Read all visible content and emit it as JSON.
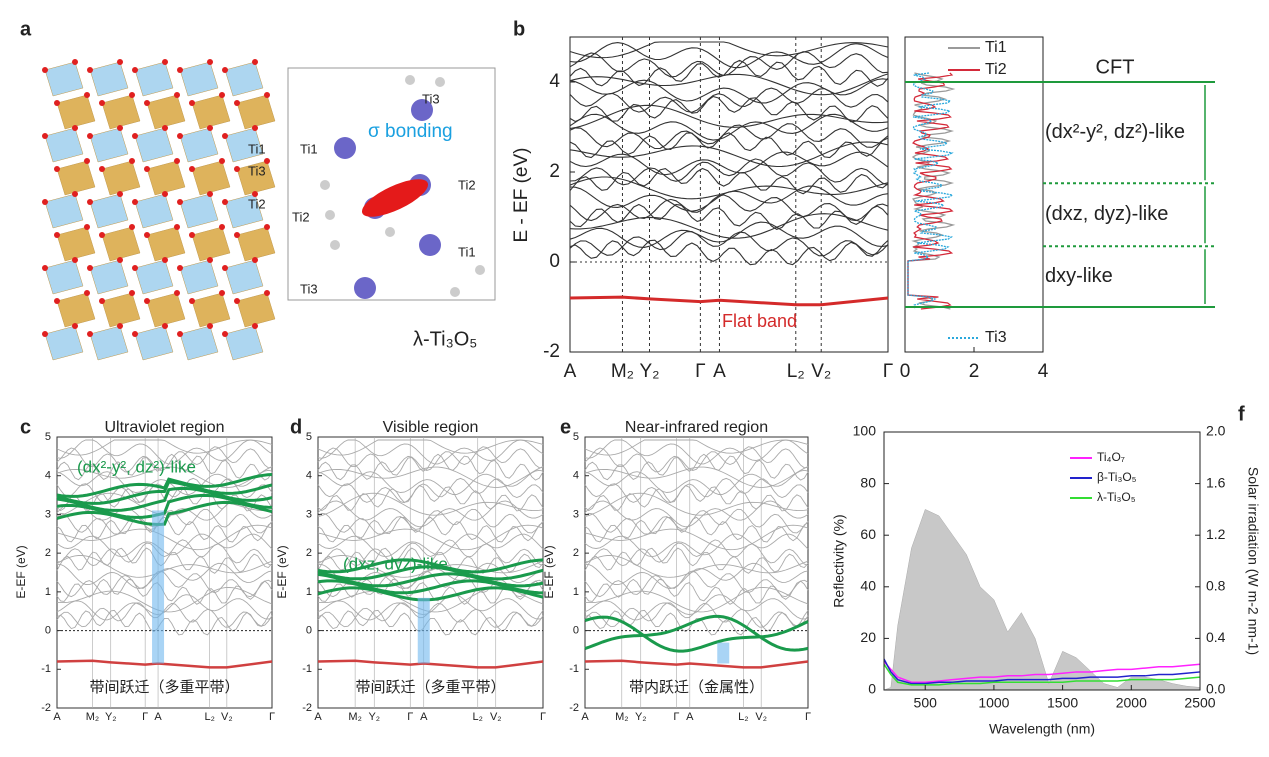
{
  "panel_labels": [
    "a",
    "b",
    "c",
    "d",
    "e",
    "f"
  ],
  "a": {
    "site_labels": [
      "Ti1",
      "Ti3",
      "Ti2"
    ],
    "inset_labels": [
      "Ti3",
      "Ti1",
      "Ti2",
      "Ti2",
      "Ti1",
      "Ti3"
    ],
    "bonding": "σ bonding",
    "formula": "λ-Ti₃O₅"
  },
  "b": {
    "ylabel": "E - EF (eV)",
    "ylim": [
      -2,
      5
    ],
    "yticks": [
      -2,
      0,
      2,
      4
    ],
    "kpoints": [
      "A",
      "M₂",
      "Y₂",
      "Γ",
      "A",
      "L₂",
      "V₂",
      "Γ"
    ],
    "flat_band": {
      "name": "Flat band",
      "color": "#d42a2a",
      "values": [
        -0.8,
        -0.78,
        -0.82,
        -0.88,
        -0.85,
        -0.95,
        -0.95,
        -0.8
      ]
    },
    "dos": {
      "xlim": [
        0,
        4
      ],
      "xticks": [
        0,
        2,
        4
      ],
      "series": [
        {
          "name": "Ti1",
          "color": "#9a9a9a"
        },
        {
          "name": "Ti2",
          "color": "#d42a3a"
        },
        {
          "name": "Ti3",
          "color": "#2aa8dc"
        }
      ]
    },
    "cft": {
      "title": "CFT",
      "levels": [
        4,
        1.75,
        0.35,
        -1
      ],
      "labels": [
        "(dx²-y², dz²)-like",
        "(dxz, dyz)-like",
        "dxy-like"
      ]
    }
  },
  "bands": {
    "ylabel": "E-EF (eV)",
    "ylim": [
      -2,
      5
    ],
    "yticks": [
      -2,
      -1,
      0,
      1,
      2,
      3,
      4,
      5
    ],
    "kpoints": [
      "A",
      "M₂",
      "Y₂",
      "Γ",
      "A",
      "L₂",
      "V₂",
      "Γ"
    ],
    "panels": [
      {
        "title": "Ultraviolet region",
        "band_label": "(dx²-y², dz²)-like",
        "note": "带间跃迁（多重平带）"
      },
      {
        "title": "Visible region",
        "band_label": "(dxz, dyz)-like",
        "note": "带间跃迁（多重平带）"
      },
      {
        "title": "Near-infrared region",
        "note": "带内跃迁（金属性）"
      }
    ]
  },
  "chart_data": {
    "type": "line",
    "xlabel": "Wavelength (nm)",
    "ylabel": "Reflectivity (%)",
    "y2label": "Solar irradiation (W m-2 nm-1)",
    "x": [
      200,
      250,
      300,
      400,
      500,
      600,
      700,
      800,
      900,
      1000,
      1100,
      1200,
      1300,
      1400,
      1500,
      1600,
      1700,
      1800,
      1900,
      2000,
      2100,
      2200,
      2300,
      2400,
      2500
    ],
    "xlim": [
      200,
      2500
    ],
    "xticks": [
      500,
      1000,
      1500,
      2000,
      2500
    ],
    "ylim": [
      0,
      100
    ],
    "yticks": [
      0,
      20,
      40,
      60,
      80,
      100
    ],
    "y2lim": [
      0,
      2
    ],
    "y2ticks": [
      {
        "value": 0,
        "label": "0.0"
      },
      0.4,
      0.8,
      1.2,
      1.6,
      {
        "value": 2,
        "label": "2.0"
      }
    ],
    "series": [
      {
        "name": "Ti₄O₇",
        "color": "#ff22ff",
        "values": [
          11,
          8,
          5,
          3,
          3,
          3.5,
          4,
          4.5,
          5,
          5,
          5.5,
          5.5,
          6,
          6,
          6.5,
          7,
          7,
          7.5,
          8,
          8,
          8.5,
          9,
          9,
          9.5,
          10
        ]
      },
      {
        "name": "β-Ti₃O₅",
        "color": "#2222cc",
        "values": [
          12,
          7,
          4,
          2.5,
          2.5,
          3,
          3,
          3.5,
          3.5,
          3.5,
          4,
          4,
          4,
          4,
          4.5,
          4.5,
          5,
          5,
          5,
          5.5,
          5.5,
          6,
          6,
          6.5,
          7
        ]
      },
      {
        "name": "λ-Ti₃O₅",
        "color": "#33dd33",
        "values": [
          10,
          6,
          3,
          2,
          2,
          2,
          2.5,
          2.5,
          2.5,
          3,
          3,
          3,
          3,
          3,
          3,
          3.5,
          3.5,
          3.5,
          3.5,
          4,
          4,
          4,
          4,
          4.5,
          5
        ]
      }
    ],
    "area": {
      "color": "#c8c8c8",
      "axis": "y2",
      "values": [
        0,
        0.02,
        0.5,
        1.1,
        1.4,
        1.35,
        1.2,
        1.05,
        0.8,
        0.7,
        0.45,
        0.6,
        0.4,
        0.05,
        0.3,
        0.25,
        0.15,
        0.05,
        0.02,
        0.1,
        0.1,
        0.08,
        0.05,
        0.03,
        0.02
      ]
    }
  }
}
